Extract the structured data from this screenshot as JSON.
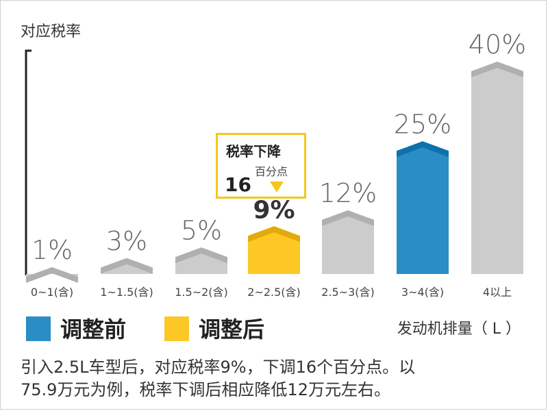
{
  "chart_data": {
    "type": "bar",
    "ylabel": "对应税率",
    "xlabel": "发动机排量（ L ）",
    "categories": [
      "0~1(含)",
      "1~1.5(含)",
      "1.5~2(含)",
      "2~2.5(含)",
      "2.5~3(含)",
      "3~4(含)",
      "4以上"
    ],
    "values": [
      1,
      3,
      5,
      9,
      12,
      25,
      40
    ],
    "value_labels": [
      "1%",
      "3%",
      "5%",
      "9%",
      "12%",
      "25%",
      "40%"
    ],
    "series": [
      {
        "name": "调整前",
        "color": "#2a8dc5"
      },
      {
        "name": "调整后",
        "color": "#fdc825"
      }
    ],
    "bar_colors": [
      "#cccccc",
      "#cccccc",
      "#cccccc",
      "#fdc825",
      "#cccccc",
      "#2a8dc5",
      "#cccccc"
    ],
    "highlight_index": 3,
    "ylim": [
      0,
      42
    ],
    "grid": false,
    "legend_position": "bottom-left",
    "annotation": {
      "title": "税率下降",
      "unit": "百分点",
      "value": "16"
    }
  },
  "caption": {
    "line1": "引入2.5L车型后，对应税率9%，下调16个百分点。以",
    "line2": "75.9万元为例，税率下调后相应降低12万元左右。"
  }
}
